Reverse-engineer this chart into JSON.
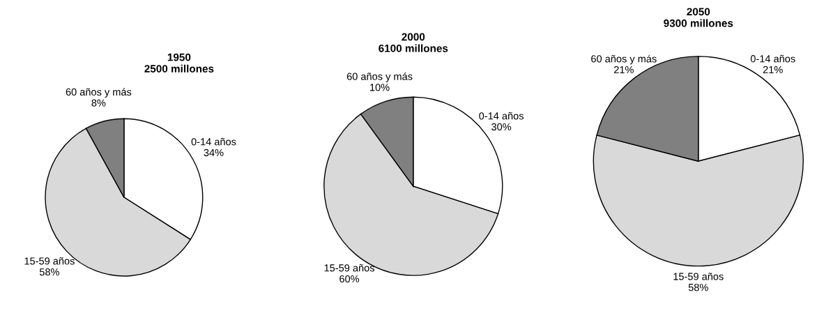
{
  "chart_data": [
    {
      "type": "pie",
      "title": "1950\n2500 millones",
      "categories": [
        "0-14 años",
        "15-59 años",
        "60 años y más"
      ],
      "values": [
        34,
        58,
        8
      ],
      "value_labels": [
        "34%",
        "58%",
        "8%"
      ],
      "colors": [
        "#ffffff",
        "#d9d9d9",
        "#808080"
      ]
    },
    {
      "type": "pie",
      "title": "2000\n6100 millones",
      "categories": [
        "0-14 años",
        "15-59 años",
        "60 años y más"
      ],
      "values": [
        30,
        60,
        10
      ],
      "value_labels": [
        "30%",
        "60%",
        "10%"
      ],
      "colors": [
        "#ffffff",
        "#d9d9d9",
        "#808080"
      ]
    },
    {
      "type": "pie",
      "title": "2050\n9300 millones",
      "categories": [
        "0-14 años",
        "15-59 años",
        "60 años y más"
      ],
      "values": [
        21,
        58,
        21
      ],
      "value_labels": [
        "21%",
        "58%",
        "21%"
      ],
      "colors": [
        "#ffffff",
        "#d9d9d9",
        "#808080"
      ]
    }
  ]
}
